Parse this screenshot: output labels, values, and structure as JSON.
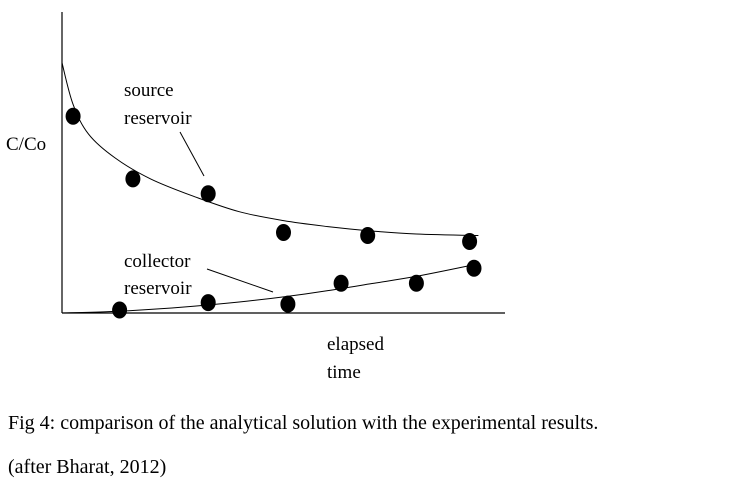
{
  "chart_data": {
    "type": "scatter",
    "title": "",
    "ylabel": "C/Co",
    "xlabel_lines": [
      "elapsed",
      "time"
    ],
    "xlim": [
      0,
      10
    ],
    "ylim": [
      0,
      1
    ],
    "grid": false,
    "series": [
      {
        "label_lines": [
          "source",
          "reservoir"
        ],
        "points": [
          [
            0.25,
            0.66
          ],
          [
            1.6,
            0.45
          ],
          [
            3.3,
            0.4
          ],
          [
            5.0,
            0.27
          ],
          [
            6.9,
            0.26
          ],
          [
            9.2,
            0.24
          ]
        ],
        "curve": [
          [
            0,
            0.84
          ],
          [
            0.25,
            0.7
          ],
          [
            0.6,
            0.6
          ],
          [
            1.2,
            0.52
          ],
          [
            2.0,
            0.45
          ],
          [
            3.0,
            0.39
          ],
          [
            4.0,
            0.34
          ],
          [
            5.0,
            0.31
          ],
          [
            6.0,
            0.29
          ],
          [
            7.0,
            0.275
          ],
          [
            8.0,
            0.265
          ],
          [
            9.4,
            0.26
          ]
        ]
      },
      {
        "label_lines": [
          "collector",
          "reservoir"
        ],
        "points": [
          [
            1.3,
            0.01
          ],
          [
            3.3,
            0.035
          ],
          [
            5.1,
            0.03
          ],
          [
            6.3,
            0.1
          ],
          [
            8.0,
            0.1
          ],
          [
            9.3,
            0.15
          ]
        ],
        "curve": [
          [
            0,
            0.0
          ],
          [
            1.0,
            0.004
          ],
          [
            2.0,
            0.012
          ],
          [
            3.0,
            0.023
          ],
          [
            4.0,
            0.037
          ],
          [
            5.0,
            0.054
          ],
          [
            6.0,
            0.075
          ],
          [
            7.0,
            0.099
          ],
          [
            8.0,
            0.123
          ],
          [
            9.4,
            0.165
          ]
        ]
      }
    ]
  },
  "caption": {
    "line1": "Fig 4: comparison of the analytical solution with the experimental results.",
    "line2": "(after Bharat, 2012)"
  }
}
